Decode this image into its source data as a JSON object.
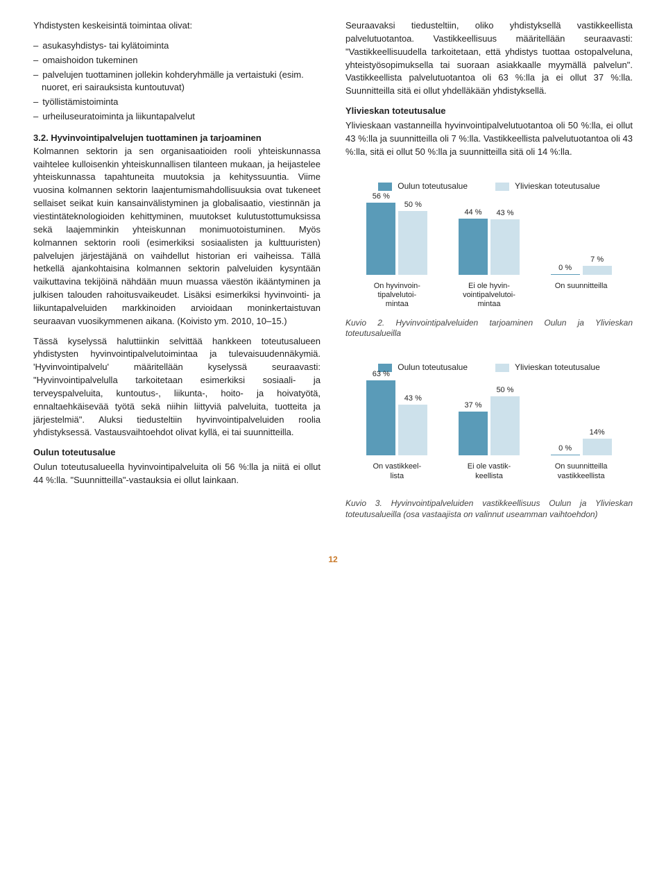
{
  "colors": {
    "oulu": "#5a9bb8",
    "ylivieska": "#cde1eb",
    "text": "#222222",
    "caption": "#444444",
    "pagenum": "#c97a2a"
  },
  "left": {
    "intro": "Yhdistysten keskeisintä toimintaa olivat:",
    "bullets": [
      "asukasyhdistys- tai kylätoiminta",
      "omaishoidon tukeminen",
      "palvelujen tuottaminen jollekin kohderyhmälle ja vertaistuki (esim. nuoret, eri sairauksista kuntoutuvat)",
      "työllistämistoiminta",
      "urheiluseuratoiminta ja liikuntapalvelut"
    ],
    "h32_title": "3.2. Hyvinvointipalvelujen tuottaminen ja tarjoaminen",
    "h32_body": "Kolmannen sektorin ja sen organisaatioiden rooli yhteiskunnassa vaihtelee kulloisenkin yhteiskunnallisen tilanteen mukaan, ja heijastelee yhteiskunnassa tapahtuneita muutoksia ja kehityssuuntia. Viime vuosina kolmannen sektorin laajentumismahdollisuuksia ovat tukeneet sellaiset seikat kuin kansainvälistyminen ja globalisaatio, viestinnän ja viestintäteknologioiden kehittyminen, muutokset kulutustottumuksissa sekä laajemminkin yhteiskunnan monimuotoistuminen. Myös kolmannen sektorin rooli (esimerkiksi sosiaalisten ja kulttuuristen) palvelujen järjestäjänä on vaihdellut historian eri vaiheissa. Tällä hetkellä ajankohtaisina kolmannen sektorin palveluiden kysyntään vaikuttavina tekijöinä nähdään muun muassa väestön ikääntyminen ja julkisen talouden rahoitusvaikeudet. Lisäksi esimerkiksi hyvinvointi- ja liikuntapalveluiden markkinoiden arvioidaan moninkertaistuvan seuraavan vuosikymmenen aikana. (Koivisto ym. 2010, 10–15.)",
    "para2": "Tässä kyselyssä haluttiinkin selvittää hankkeen toteutusalueen yhdistysten hyvinvointipalvelutoimintaa ja tulevaisuudennäkymiä. 'Hyvinvointipalvelu' määritellään kyselyssä seuraavasti: \"Hyvinvointipalvelulla tarkoitetaan esimerkiksi sosiaali- ja terveyspalveluita, kuntoutus-, liikunta-, hoito- ja hoivatyötä, ennaltaehkäisevää työtä sekä niihin liittyviä palveluita, tuotteita ja järjestelmiä\". Aluksi tiedusteltiin hyvinvointipalveluiden roolia yhdistyksessä. Vastausvaihtoehdot olivat kyllä, ei tai suunnitteilla.",
    "oulu_head": "Oulun toteutusalue",
    "oulu_body": "Oulun toteutusalueella hyvinvointipalveluita oli 56 %:lla ja niitä ei ollut 44 %:lla. \"Suunnitteilla\"-vastauksia ei ollut lainkaan."
  },
  "right": {
    "para1": "Seuraavaksi tiedusteltiin, oliko yhdistyksellä vastikkeellista palvelutuotantoa. Vastikkeellisuus määritellään seuraavasti: \"Vastikkeellisuudella tarkoitetaan, että yhdistys tuottaa ostopalveluna, yhteistyösopimuksella tai suoraan asiakkaalle myymällä palvelun\". Vastikkeellista palvelutuotantoa oli 63 %:lla ja ei ollut 37 %:lla. Suunnitteilla sitä ei ollut yhdelläkään yhdistyksellä.",
    "yliv_head": "Ylivieskan toteutusalue",
    "yliv_body": "Ylivieskaan vastanneilla hyvinvointipalvelutuotantoa oli 50 %:lla, ei ollut 43 %:lla ja suunnitteilla oli 7 %:lla. Vastikkeellista palvelutuotantoa oli 43 %:lla, sitä ei ollut 50 %:lla ja suunnitteilla sitä oli 14 %:lla."
  },
  "chart2": {
    "legend": {
      "oulu": "Oulun toteutusalue",
      "ylivieska": "Ylivieskan toteutusalue"
    },
    "max": 65,
    "groups": [
      {
        "label": "On hyvinvoin-\ntipalvelutoi-\nmintaa",
        "oulu": 56,
        "yliv": 50
      },
      {
        "label": "Ei ole hyvin-\nvointipalvelutoi-\nmintaa",
        "oulu": 44,
        "yliv": 43
      },
      {
        "label": "On suunnitteilla",
        "oulu": 0,
        "yliv": 7
      }
    ],
    "caption": "Kuvio 2. Hyvinvointipalveluiden tarjoaminen Oulun ja Ylivieskan toteutusalueilla"
  },
  "chart3": {
    "legend": {
      "oulu": "Oulun toteutusalue",
      "ylivieska": "Ylivieskan toteutusalue"
    },
    "max": 70,
    "groups": [
      {
        "label": "On vastikkeel-\nlista",
        "oulu": 63,
        "yliv": 43
      },
      {
        "label": "Ei ole vastik-\nkeellista",
        "oulu": 37,
        "yliv": 50
      },
      {
        "label": "On suunnitteilla\nvastikkeellista",
        "oulu": 0,
        "yliv": 14
      }
    ],
    "caption": "Kuvio 3. Hyvinvointipalveluiden vastikkeellisuus Oulun ja Ylivieskan toteutusalueilla (osa vastaajista on valinnut useamman vaihtoehdon)"
  },
  "pagenum": "12"
}
